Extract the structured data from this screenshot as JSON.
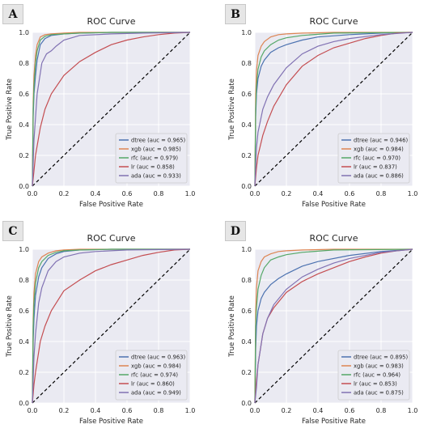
{
  "chart_data": [
    {
      "panel_label": "A",
      "type": "line",
      "title": "ROC Curve",
      "xlabel": "False Positive Rate",
      "ylabel": "True Positive Rate",
      "xlim": [
        0,
        1
      ],
      "ylim": [
        0,
        1
      ],
      "grid": true,
      "legend_position": "bottom-right",
      "xticks": [
        "0.0",
        "0.2",
        "0.4",
        "0.6",
        "0.8",
        "1.0"
      ],
      "yticks": [
        "0.0",
        "0.2",
        "0.4",
        "0.6",
        "0.8",
        "1.0"
      ],
      "series": [
        {
          "name": "dtree (auc = 0.965)",
          "color": "#4c72b0",
          "x": [
            0,
            0.005,
            0.01,
            0.02,
            0.03,
            0.05,
            0.08,
            0.12,
            0.2,
            0.3,
            0.5,
            1
          ],
          "y": [
            0,
            0.45,
            0.6,
            0.72,
            0.82,
            0.92,
            0.96,
            0.98,
            0.99,
            0.995,
            1,
            1
          ]
        },
        {
          "name": "xgb (auc = 0.985)",
          "color": "#dd8452",
          "x": [
            0,
            0.005,
            0.01,
            0.02,
            0.03,
            0.05,
            0.08,
            0.12,
            0.2,
            0.3,
            0.5,
            1
          ],
          "y": [
            0,
            0.55,
            0.72,
            0.85,
            0.92,
            0.97,
            0.985,
            0.99,
            0.995,
            1,
            1,
            1
          ]
        },
        {
          "name": "rfc (auc = 0.979)",
          "color": "#55a868",
          "x": [
            0,
            0.005,
            0.01,
            0.02,
            0.03,
            0.05,
            0.08,
            0.12,
            0.2,
            0.3,
            0.5,
            1
          ],
          "y": [
            0,
            0.5,
            0.65,
            0.8,
            0.88,
            0.95,
            0.975,
            0.985,
            0.99,
            0.995,
            1,
            1
          ]
        },
        {
          "name": "lr (auc = 0.858)",
          "color": "#c44e52",
          "x": [
            0,
            0.01,
            0.02,
            0.05,
            0.08,
            0.12,
            0.2,
            0.3,
            0.4,
            0.5,
            0.6,
            0.7,
            0.8,
            0.9,
            1
          ],
          "y": [
            0,
            0.1,
            0.2,
            0.38,
            0.5,
            0.6,
            0.72,
            0.81,
            0.87,
            0.92,
            0.95,
            0.97,
            0.985,
            0.995,
            1
          ]
        },
        {
          "name": "ada (auc = 0.933)",
          "color": "#8172b3",
          "x": [
            0,
            0.01,
            0.03,
            0.06,
            0.09,
            0.12,
            0.15,
            0.2,
            0.3,
            0.5,
            0.7,
            1
          ],
          "y": [
            0,
            0.3,
            0.6,
            0.8,
            0.86,
            0.88,
            0.91,
            0.95,
            0.98,
            0.99,
            0.995,
            1
          ]
        }
      ]
    },
    {
      "panel_label": "B",
      "type": "line",
      "title": "ROC Curve",
      "xlabel": "False Positive Rate",
      "ylabel": "True Positive Rate",
      "xlim": [
        0,
        1
      ],
      "ylim": [
        0,
        1
      ],
      "grid": true,
      "legend_position": "bottom-right",
      "xticks": [
        "0.0",
        "0.2",
        "0.4",
        "0.6",
        "0.8",
        "1.0"
      ],
      "yticks": [
        "0.0",
        "0.2",
        "0.4",
        "0.6",
        "0.8",
        "1.0"
      ],
      "series": [
        {
          "name": "dtree (auc = 0.946)",
          "color": "#4c72b0",
          "x": [
            0,
            0.005,
            0.01,
            0.02,
            0.04,
            0.06,
            0.1,
            0.15,
            0.2,
            0.3,
            0.4,
            0.6,
            0.8,
            1
          ],
          "y": [
            0,
            0.45,
            0.6,
            0.7,
            0.78,
            0.82,
            0.87,
            0.9,
            0.92,
            0.95,
            0.97,
            0.985,
            0.995,
            1
          ]
        },
        {
          "name": "xgb (auc = 0.984)",
          "color": "#dd8452",
          "x": [
            0,
            0.005,
            0.01,
            0.02,
            0.04,
            0.06,
            0.1,
            0.15,
            0.2,
            0.3,
            0.5,
            1
          ],
          "y": [
            0,
            0.6,
            0.75,
            0.85,
            0.91,
            0.94,
            0.97,
            0.985,
            0.99,
            0.995,
            1,
            1
          ]
        },
        {
          "name": "rfc (auc = 0.970)",
          "color": "#55a868",
          "x": [
            0,
            0.005,
            0.01,
            0.02,
            0.04,
            0.06,
            0.1,
            0.15,
            0.2,
            0.3,
            0.5,
            1
          ],
          "y": [
            0,
            0.5,
            0.65,
            0.76,
            0.84,
            0.88,
            0.92,
            0.95,
            0.965,
            0.98,
            0.995,
            1
          ]
        },
        {
          "name": "lr (auc = 0.837)",
          "color": "#c44e52",
          "x": [
            0,
            0.01,
            0.02,
            0.05,
            0.08,
            0.12,
            0.2,
            0.3,
            0.4,
            0.5,
            0.6,
            0.7,
            0.8,
            0.9,
            1
          ],
          "y": [
            0,
            0.12,
            0.2,
            0.33,
            0.42,
            0.52,
            0.66,
            0.78,
            0.85,
            0.9,
            0.93,
            0.96,
            0.98,
            0.995,
            1
          ]
        },
        {
          "name": "ada (auc = 0.886)",
          "color": "#8172b3",
          "x": [
            0,
            0.01,
            0.02,
            0.05,
            0.08,
            0.12,
            0.2,
            0.3,
            0.4,
            0.5,
            0.6,
            0.8,
            1
          ],
          "y": [
            0,
            0.25,
            0.35,
            0.5,
            0.58,
            0.66,
            0.77,
            0.86,
            0.91,
            0.94,
            0.96,
            0.985,
            1
          ]
        }
      ]
    },
    {
      "panel_label": "C",
      "type": "line",
      "title": "ROC Curve",
      "xlabel": "False Positive Rate",
      "ylabel": "True Positive Rate",
      "xlim": [
        0,
        1
      ],
      "ylim": [
        0,
        1
      ],
      "grid": true,
      "legend_position": "bottom-right",
      "xticks": [
        "0.0",
        "0.2",
        "0.4",
        "0.6",
        "0.8",
        "1.0"
      ],
      "yticks": [
        "0.0",
        "0.2",
        "0.4",
        "0.6",
        "0.8",
        "1.0"
      ],
      "series": [
        {
          "name": "dtree (auc = 0.963)",
          "color": "#4c72b0",
          "x": [
            0,
            0.005,
            0.01,
            0.02,
            0.04,
            0.06,
            0.1,
            0.15,
            0.2,
            0.3,
            0.5,
            1
          ],
          "y": [
            0,
            0.4,
            0.55,
            0.7,
            0.82,
            0.88,
            0.94,
            0.97,
            0.985,
            0.995,
            1,
            1
          ]
        },
        {
          "name": "xgb (auc = 0.984)",
          "color": "#dd8452",
          "x": [
            0,
            0.005,
            0.01,
            0.02,
            0.04,
            0.06,
            0.1,
            0.15,
            0.2,
            0.3,
            0.5,
            1
          ],
          "y": [
            0,
            0.55,
            0.72,
            0.84,
            0.92,
            0.95,
            0.975,
            0.99,
            0.995,
            1,
            1,
            1
          ]
        },
        {
          "name": "rfc (auc = 0.974)",
          "color": "#55a868",
          "x": [
            0,
            0.005,
            0.01,
            0.02,
            0.04,
            0.06,
            0.1,
            0.15,
            0.2,
            0.3,
            0.5,
            1
          ],
          "y": [
            0,
            0.5,
            0.65,
            0.78,
            0.88,
            0.92,
            0.96,
            0.98,
            0.99,
            0.995,
            1,
            1
          ]
        },
        {
          "name": "lr (auc = 0.860)",
          "color": "#c44e52",
          "x": [
            0,
            0.01,
            0.02,
            0.05,
            0.08,
            0.12,
            0.2,
            0.3,
            0.4,
            0.5,
            0.6,
            0.7,
            0.8,
            0.9,
            1
          ],
          "y": [
            0,
            0.12,
            0.2,
            0.4,
            0.5,
            0.6,
            0.73,
            0.8,
            0.86,
            0.9,
            0.93,
            0.96,
            0.98,
            0.995,
            1
          ]
        },
        {
          "name": "ada (auc = 0.949)",
          "color": "#8172b3",
          "x": [
            0,
            0.01,
            0.02,
            0.04,
            0.06,
            0.1,
            0.15,
            0.2,
            0.3,
            0.4,
            0.6,
            1
          ],
          "y": [
            0,
            0.3,
            0.45,
            0.65,
            0.75,
            0.86,
            0.92,
            0.95,
            0.975,
            0.985,
            0.995,
            1
          ]
        }
      ]
    },
    {
      "panel_label": "D",
      "type": "line",
      "title": "ROC Curve",
      "xlabel": "False Positive Rate",
      "ylabel": "True Positive Rate",
      "xlim": [
        0,
        1
      ],
      "ylim": [
        0,
        1
      ],
      "grid": true,
      "legend_position": "bottom-right",
      "xticks": [
        "0.0",
        "0.2",
        "0.4",
        "0.6",
        "0.8",
        "1.0"
      ],
      "yticks": [
        "0.0",
        "0.2",
        "0.4",
        "0.6",
        "0.8",
        "1.0"
      ],
      "series": [
        {
          "name": "dtree (auc = 0.895)",
          "color": "#4c72b0",
          "x": [
            0,
            0.005,
            0.01,
            0.02,
            0.04,
            0.06,
            0.1,
            0.15,
            0.2,
            0.3,
            0.4,
            0.6,
            0.8,
            1
          ],
          "y": [
            0,
            0.35,
            0.5,
            0.6,
            0.68,
            0.72,
            0.77,
            0.81,
            0.84,
            0.89,
            0.92,
            0.96,
            0.985,
            1
          ]
        },
        {
          "name": "xgb (auc = 0.983)",
          "color": "#dd8452",
          "x": [
            0,
            0.005,
            0.01,
            0.02,
            0.04,
            0.06,
            0.1,
            0.15,
            0.2,
            0.3,
            0.5,
            1
          ],
          "y": [
            0,
            0.6,
            0.75,
            0.86,
            0.92,
            0.95,
            0.97,
            0.985,
            0.99,
            0.995,
            1,
            1
          ]
        },
        {
          "name": "rfc (auc = 0.964)",
          "color": "#55a868",
          "x": [
            0,
            0.005,
            0.01,
            0.02,
            0.04,
            0.06,
            0.1,
            0.15,
            0.2,
            0.3,
            0.5,
            1
          ],
          "y": [
            0,
            0.5,
            0.62,
            0.74,
            0.83,
            0.88,
            0.93,
            0.95,
            0.965,
            0.98,
            0.995,
            1
          ]
        },
        {
          "name": "lr (auc = 0.853)",
          "color": "#c44e52",
          "x": [
            0,
            0.01,
            0.02,
            0.05,
            0.08,
            0.12,
            0.2,
            0.3,
            0.4,
            0.5,
            0.6,
            0.7,
            0.8,
            0.9,
            1
          ],
          "y": [
            0,
            0.15,
            0.25,
            0.45,
            0.55,
            0.62,
            0.72,
            0.79,
            0.84,
            0.88,
            0.92,
            0.95,
            0.975,
            0.99,
            1
          ]
        },
        {
          "name": "ada (auc = 0.875)",
          "color": "#8172b3",
          "x": [
            0,
            0.01,
            0.02,
            0.05,
            0.08,
            0.12,
            0.2,
            0.3,
            0.4,
            0.5,
            0.6,
            0.8,
            1
          ],
          "y": [
            0,
            0.1,
            0.25,
            0.45,
            0.55,
            0.64,
            0.74,
            0.82,
            0.87,
            0.91,
            0.94,
            0.98,
            1
          ]
        }
      ]
    }
  ]
}
